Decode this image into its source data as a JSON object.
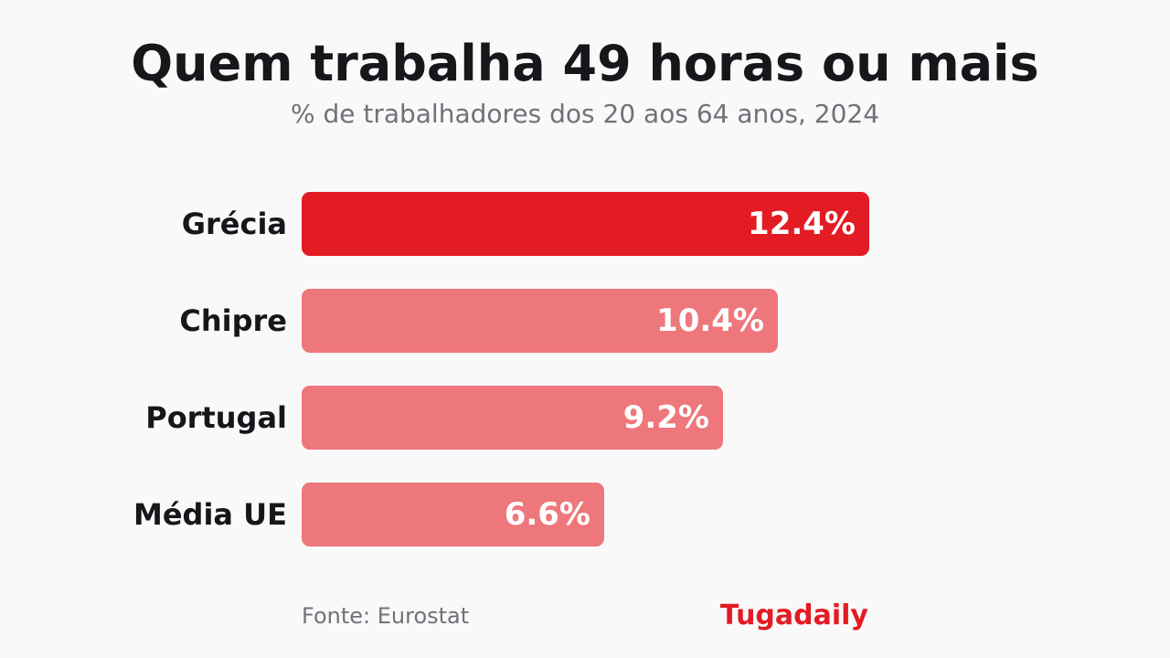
{
  "title": "Quem trabalha 49 horas ou mais",
  "subtitle": "% de trabalhadores dos 20 aos 64 anos, 2024",
  "footer": {
    "source": "Fonte: Eurostat",
    "brand": "Tugadaily"
  },
  "colors": {
    "highlight": "#e31b23",
    "muted": "#ee777b",
    "brand": "#e31b23"
  },
  "chart_data": {
    "type": "bar",
    "orientation": "horizontal",
    "categories": [
      "Grécia",
      "Chipre",
      "Portugal",
      "Média UE"
    ],
    "values": [
      12.4,
      10.4,
      9.2,
      6.6
    ],
    "value_labels": [
      "12.4%",
      "10.4%",
      "9.2%",
      "6.6%"
    ],
    "highlighted": [
      true,
      false,
      false,
      false
    ],
    "title": "Quem trabalha 49 horas ou mais",
    "subtitle": "% de trabalhadores dos 20 aos 64 anos, 2024",
    "xlabel": "",
    "ylabel": "",
    "xlim": [
      0,
      12.4
    ],
    "grid": false,
    "legend": "none"
  }
}
